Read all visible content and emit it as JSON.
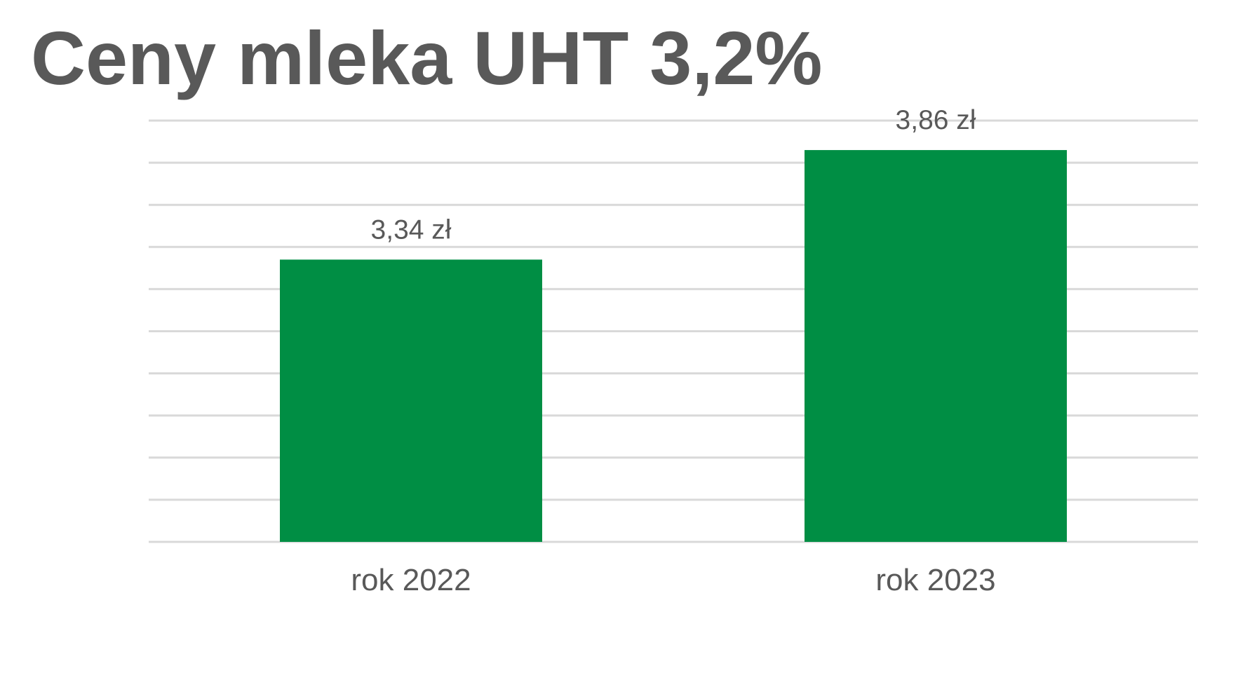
{
  "chart_data": {
    "type": "bar",
    "title": "Ceny mleka UHT 3,2%",
    "categories": [
      "rok 2022",
      "rok 2023"
    ],
    "values": [
      3.34,
      3.86
    ],
    "value_labels": [
      "3,34 zł",
      "3,86 zł"
    ],
    "color": "#008e44",
    "ylim": [
      2,
      4
    ],
    "yticks": [
      2,
      2.2,
      2.4,
      2.6,
      2.8,
      3,
      3.2,
      3.4,
      3.6,
      3.8,
      4
    ],
    "grid": true
  }
}
